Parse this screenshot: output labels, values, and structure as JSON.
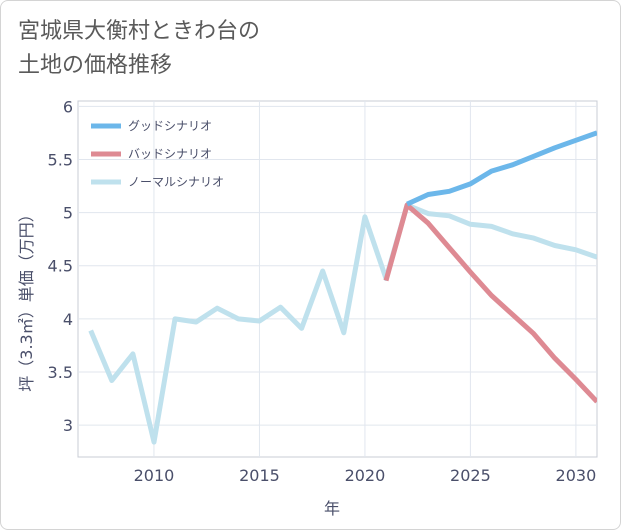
{
  "chart_data": {
    "type": "line",
    "title_lines": [
      "宮城県大衡村ときわ台の",
      "土地の価格推移"
    ],
    "xlabel": "年",
    "ylabel": "坪（3.3㎡）単価（万円）",
    "xlim": [
      2006.4,
      2031
    ],
    "ylim": [
      2.7,
      6.05
    ],
    "x_ticks": [
      2010,
      2015,
      2020,
      2025,
      2030
    ],
    "y_ticks": [
      3,
      3.5,
      4,
      4.5,
      5,
      5.5,
      6
    ],
    "x_tick_labels": [
      "2010",
      "2015",
      "2020",
      "2025",
      "2030"
    ],
    "y_tick_labels": [
      "3",
      "3.5",
      "4",
      "4.5",
      "5",
      "5.5",
      "6"
    ],
    "grid": true,
    "legend_position": "top-left",
    "series": [
      {
        "name": "グッドシナリオ",
        "color": "#6cb7ea",
        "x": [
          2022,
          2023,
          2024,
          2025,
          2026,
          2027,
          2028,
          2029,
          2030,
          2031
        ],
        "values": [
          5.08,
          5.17,
          5.2,
          5.27,
          5.39,
          5.45,
          5.53,
          5.61,
          5.68,
          5.75
        ]
      },
      {
        "name": "バッドシナリオ",
        "color": "#de8a93",
        "x": [
          2021,
          2022,
          2023,
          2024,
          2025,
          2026,
          2027,
          2028,
          2029,
          2030,
          2031
        ],
        "values": [
          4.36,
          5.07,
          4.9,
          4.67,
          4.44,
          4.22,
          4.04,
          3.86,
          3.63,
          3.43,
          3.22
        ]
      },
      {
        "name": "ノーマルシナリオ",
        "color": "#bfe1ed",
        "x": [
          2007,
          2008,
          2009,
          2010,
          2011,
          2012,
          2013,
          2014,
          2015,
          2016,
          2017,
          2018,
          2019,
          2020,
          2021,
          2022,
          2023,
          2024,
          2025,
          2026,
          2027,
          2028,
          2029,
          2030,
          2031
        ],
        "values": [
          3.89,
          3.42,
          3.67,
          2.84,
          4.0,
          3.97,
          4.1,
          4.0,
          3.98,
          4.11,
          3.91,
          4.45,
          3.87,
          4.96,
          4.38,
          5.07,
          4.99,
          4.97,
          4.89,
          4.87,
          4.8,
          4.76,
          4.69,
          4.65,
          4.58
        ]
      }
    ]
  }
}
